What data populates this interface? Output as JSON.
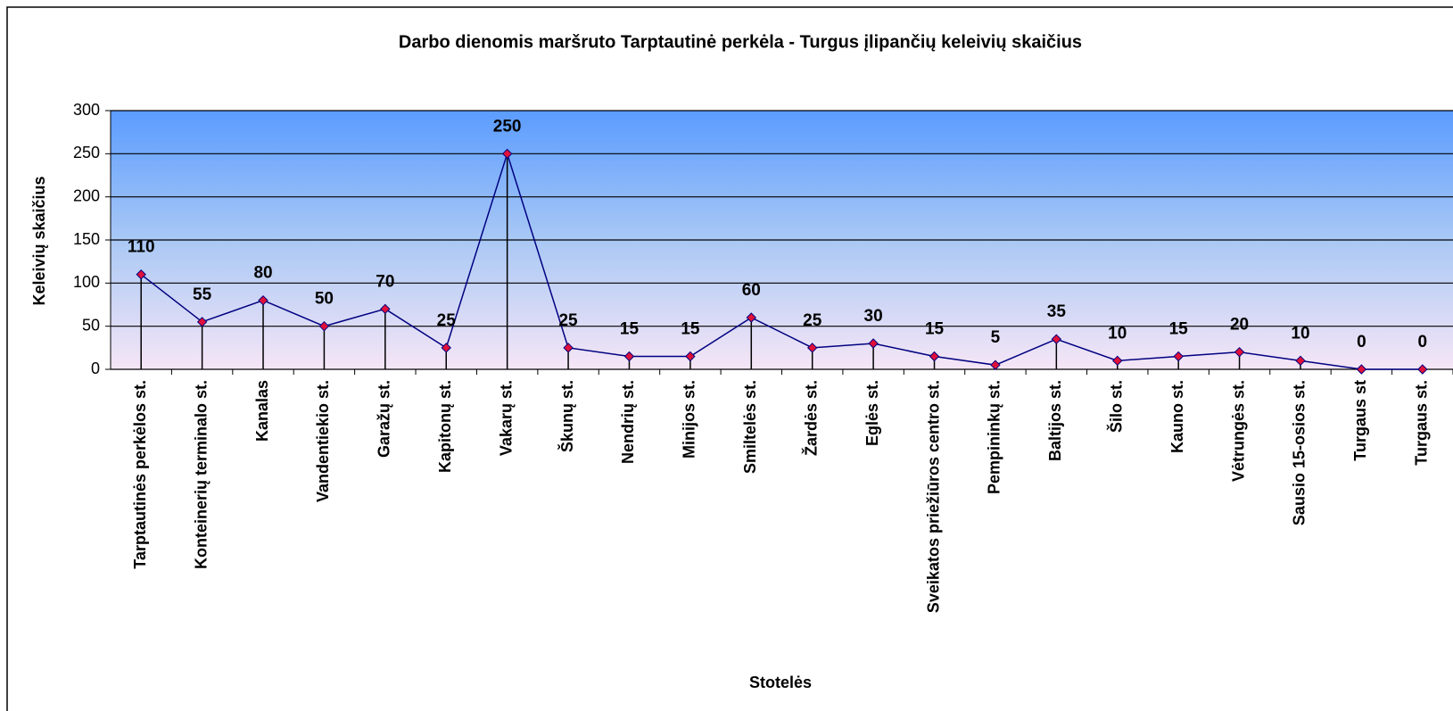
{
  "chart_data": {
    "type": "line",
    "title": "Darbo dienomis maršruto Tarptautinė perkėla - Turgus įlipančių keleivių skaičius",
    "xlabel": "Stotelės",
    "ylabel": "Keleivių skaičius",
    "categories": [
      "Tarptautinės perkėlos st.",
      "Konteinerių terminalo st.",
      "Kanalas",
      "Vandentiekio st.",
      "Garažų st.",
      "Kapitonų st.",
      "Vakarų st.",
      "Škunų st.",
      "Nendrių st.",
      "Minijos st.",
      "Smiltelės st.",
      "Žardės st.",
      "Eglės st.",
      "Sveikatos priežiūros centro st.",
      "Pempininkų st.",
      "Baltijos st.",
      "Šilo st.",
      "Kauno st.",
      "Vėtrungės st.",
      "Sausio 15-osios st.",
      "Turgaus st",
      "Turgaus st."
    ],
    "series": [
      {
        "name": "Keleivių skaičius",
        "color": "#000080",
        "marker_color": "#e0103a",
        "values": [
          110,
          55,
          80,
          50,
          70,
          25,
          250,
          25,
          15,
          15,
          60,
          25,
          30,
          15,
          5,
          35,
          10,
          15,
          20,
          10,
          0,
          0
        ]
      }
    ],
    "ylim": [
      0,
      300
    ],
    "yticks": [
      0,
      50,
      100,
      150,
      200,
      250,
      300
    ],
    "grid": true,
    "drop_lines": true
  }
}
